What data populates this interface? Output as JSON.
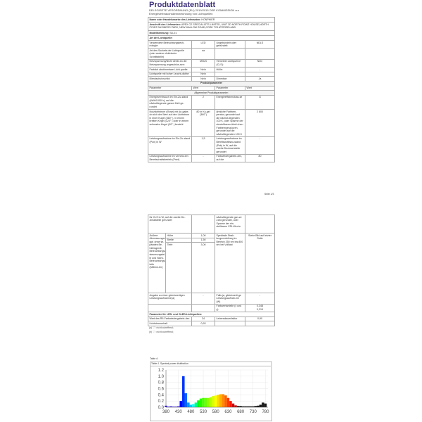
{
  "title": "Produktdatenblatt",
  "subtitle": "DELEGIERTE VERORDNUNG (EU) 2019/2015 DER KOMMISSION zur Energieverbrauchskennzeichnung von Lichtquellen",
  "page1": {
    "name_label": "Name oder Handelsmarke des Lieferanten:",
    "name_value": "HONPHIER",
    "address_label": "Anschrift des Lieferanten:",
    "address_value": "APEX CE SPECIALISTS LIMITED, UNIT 3D NORTH POINT HOUSE,NORTH POINT BUSINESS PARK, NEW MALLOW ROAD,CORK T23 AT2PIRELAND",
    "model_label": "Modellkennung:",
    "model_value": "SD-01",
    "type_heading": "Art der Lichtquelle:",
    "rows": [
      [
        "Verwendete Beleuchtungstech-nologie:",
        "LED",
        "Ungebündelt oder gebündelt:",
        "NDLS"
      ],
      [
        "Art des Sockels der Lichtquelle (oder andere elektrische Schnittstelle)",
        "na",
        "",
        ""
      ],
      [
        "Netzspannung/Nicht direkt an die Netzspannung angeschlos-sen:",
        "MNLS",
        "Vernetzte Lichtquel-le (CLS):",
        "Nein"
      ],
      [
        "Farblich abstimmbare Licht-quelle:",
        "Nein",
        "Hülle:",
        "-"
      ],
      [
        "Lichtquelle mit hoher Leucht-dichte:",
        "Nein",
        "",
        ""
      ],
      [
        "Blendschutzschild:",
        "Nein",
        "Dimmbar:",
        "Ja"
      ]
    ],
    "product_params": "Produktparameter",
    "col_headers": [
      "Parameter",
      "Wert",
      "Parameter",
      "Wert"
    ],
    "general_params": "Allgemeine Produktparameter:",
    "rows2": [
      [
        "Energieverbrauch im Ein-Zu-stand (kWh/1000 h), auf die nächstliegende ganze Zahl ge-rundet",
        "2",
        "Energieeffizienzklas-se",
        "G"
      ],
      [
        "Nutzlichtstrom (Φuse) mit An-gabe, ob sich der Wert auf den Lichtstrom in einer Kugel (360° ), in einem breiten Kegel (120° ) oder in einem schmalen Kegel (90° ) bezieht",
        "80 in Ku-gel (360°)",
        "ähnliche Farbtem-peratur, gerundet auf die nächst-liegenden 100 K, oder Spanne der einstellbaren ähnli-chen Farbtempera-turen, gerundet auf die nächstliegenden 100 K",
        "2 800"
      ],
      [
        "Leistungsaufnahme im Ein-Zu-stand (Pon) in W",
        "1,5",
        "Leistungsaufnahme im Bereitschaftszu-stand (Psb) in W, auf die zweite Dezimal-stelle gerundet",
        "-"
      ],
      [
        "Leistungsaufnahme im vernetz-ten Bereitschaftsbetrieb (Pnet)",
        "-",
        "Farbwiedergabein-dex, auf die",
        "80"
      ]
    ],
    "page_number": "Seite 1/3"
  },
  "page2": {
    "cont": [
      "für CLS in W, auf die zweite De-zimalstelle gerundet",
      "",
      "nächstliegende gan-ze Zahl gerundet, oder Spanne der ein-stellbaren CRI-Wer-te",
      ""
    ],
    "dims_label": "Äußere Abmessungen, ggf. ohne se-parates Be-triebsgerät, Beleuchtungs-steuerungstei-le und Nicht-Beleuchtungs-teile (Millime-ter)",
    "dims": [
      [
        "Höhe",
        "1,00"
      ],
      [
        "Breite",
        "1,50"
      ],
      [
        "Tiefe",
        "3,00"
      ]
    ],
    "spectral_label": "Spektrale Strah-lungsverteilung im Bereich 250 nm bis 800 nm bei Volllast",
    "spectral_value": "Siehe Bild auf letzter Seite",
    "rows": [
      [
        "Angabe zu einer gleichwertigen Leistungsaufnahme(a)",
        "-",
        "Falls ja, gleichwerti-ge Leistungsaufnah-me (W)",
        "-"
      ],
      [
        "",
        "",
        "Farbwertanteile (x und y)",
        "0,348\n0,319"
      ]
    ],
    "led_heading": "Parameter für LED- und OLED-Lichtquellen:",
    "led_rows": [
      [
        "Wert des R9-Farbwiedergabein-dex",
        "34",
        "Lebensdauerfaktor",
        "0,90"
      ],
      [
        "Lichtstromerhalt",
        "0,93",
        "",
        ""
      ]
    ],
    "footnotes": [
      "(a) \"-\": nicht zutreffend;",
      "(b) \"-\": nicht zutreffend;"
    ]
  },
  "chart_data": {
    "type": "bar",
    "label": "Table 4:",
    "title": "Table 4. Spectral power distribution",
    "xlabel": "",
    "ylabel": "",
    "xlim": [
      380,
      790
    ],
    "ylim": [
      0,
      1.2
    ],
    "xticks": [
      380,
      430,
      480,
      530,
      580,
      630,
      680,
      730,
      780
    ],
    "yticks": [
      "0.0",
      "0.2",
      "0.4",
      "0.6",
      "0.8",
      "1.0",
      "1.2"
    ],
    "grid": true,
    "x": [
      380,
      390,
      400,
      410,
      420,
      430,
      440,
      450,
      460,
      470,
      480,
      490,
      500,
      510,
      520,
      530,
      540,
      550,
      560,
      570,
      580,
      590,
      600,
      610,
      620,
      630,
      640,
      650,
      660,
      670,
      680,
      690,
      700,
      710,
      720,
      730,
      740,
      750,
      760,
      770,
      780
    ],
    "values": [
      0.05,
      0.02,
      0.03,
      0.02,
      0.02,
      0.03,
      0.2,
      1.0,
      0.45,
      0.15,
      0.08,
      0.1,
      0.15,
      0.22,
      0.28,
      0.3,
      0.3,
      0.3,
      0.32,
      0.36,
      0.38,
      0.4,
      0.42,
      0.42,
      0.38,
      0.3,
      0.2,
      0.12,
      0.06,
      0.04,
      0.04,
      0.03,
      0.03,
      0.03,
      0.03,
      0.03,
      0.04,
      0.05,
      0.08,
      0.15,
      0.12
    ]
  }
}
